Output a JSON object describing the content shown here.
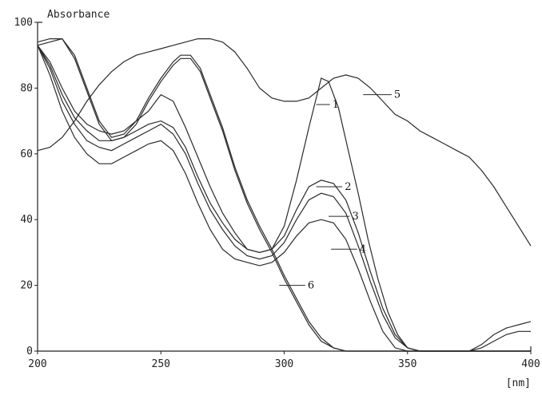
{
  "chart_data": {
    "type": "line",
    "ylabel": "Absorbance",
    "xlabel": "[nm]",
    "xlim": [
      200,
      400
    ],
    "ylim": [
      0,
      100
    ],
    "x_ticks": [
      200,
      250,
      300,
      350,
      400
    ],
    "y_ticks": [
      0,
      20,
      40,
      60,
      80,
      100
    ],
    "grid": false,
    "line_color": "#2a2a2a",
    "series": [
      {
        "name": "1",
        "label_at": [
          315,
          75
        ],
        "label_anchor": [
          313,
          75
        ],
        "points": [
          [
            200,
            93
          ],
          [
            205,
            88
          ],
          [
            210,
            80
          ],
          [
            215,
            73
          ],
          [
            220,
            69
          ],
          [
            225,
            67
          ],
          [
            230,
            66
          ],
          [
            235,
            67
          ],
          [
            240,
            70
          ],
          [
            245,
            73
          ],
          [
            250,
            78
          ],
          [
            255,
            76
          ],
          [
            260,
            68
          ],
          [
            265,
            59
          ],
          [
            270,
            50
          ],
          [
            275,
            42
          ],
          [
            280,
            36
          ],
          [
            285,
            31
          ],
          [
            290,
            30
          ],
          [
            295,
            31
          ],
          [
            300,
            38
          ],
          [
            305,
            52
          ],
          [
            310,
            68
          ],
          [
            315,
            83
          ],
          [
            318,
            82
          ],
          [
            322,
            74
          ],
          [
            326,
            61
          ],
          [
            330,
            48
          ],
          [
            334,
            34
          ],
          [
            338,
            22
          ],
          [
            342,
            12
          ],
          [
            346,
            5
          ],
          [
            350,
            1
          ],
          [
            355,
            0
          ],
          [
            400,
            0
          ]
        ]
      },
      {
        "name": "2",
        "label_at": [
          320,
          50
        ],
        "label_anchor": [
          313,
          50
        ],
        "points": [
          [
            200,
            93
          ],
          [
            205,
            87
          ],
          [
            210,
            78
          ],
          [
            215,
            71
          ],
          [
            220,
            67
          ],
          [
            225,
            64
          ],
          [
            230,
            64
          ],
          [
            235,
            65
          ],
          [
            240,
            67
          ],
          [
            245,
            69
          ],
          [
            250,
            70
          ],
          [
            255,
            68
          ],
          [
            260,
            62
          ],
          [
            265,
            53
          ],
          [
            270,
            45
          ],
          [
            275,
            39
          ],
          [
            280,
            34
          ],
          [
            285,
            31
          ],
          [
            290,
            30
          ],
          [
            295,
            31
          ],
          [
            300,
            35
          ],
          [
            305,
            43
          ],
          [
            310,
            50
          ],
          [
            315,
            52
          ],
          [
            320,
            51
          ],
          [
            325,
            46
          ],
          [
            330,
            36
          ],
          [
            335,
            24
          ],
          [
            340,
            13
          ],
          [
            345,
            5
          ],
          [
            350,
            1
          ],
          [
            355,
            0
          ],
          [
            400,
            0
          ]
        ]
      },
      {
        "name": "3",
        "label_at": [
          323,
          41
        ],
        "label_anchor": [
          318,
          41
        ],
        "points": [
          [
            200,
            93
          ],
          [
            205,
            86
          ],
          [
            210,
            76
          ],
          [
            215,
            69
          ],
          [
            220,
            64
          ],
          [
            225,
            62
          ],
          [
            230,
            61
          ],
          [
            235,
            63
          ],
          [
            240,
            65
          ],
          [
            245,
            67
          ],
          [
            250,
            69
          ],
          [
            255,
            66
          ],
          [
            260,
            60
          ],
          [
            265,
            51
          ],
          [
            270,
            43
          ],
          [
            275,
            37
          ],
          [
            280,
            32
          ],
          [
            285,
            29
          ],
          [
            290,
            28
          ],
          [
            295,
            29
          ],
          [
            300,
            33
          ],
          [
            305,
            40
          ],
          [
            310,
            46
          ],
          [
            315,
            48
          ],
          [
            320,
            47
          ],
          [
            325,
            42
          ],
          [
            330,
            32
          ],
          [
            335,
            21
          ],
          [
            340,
            11
          ],
          [
            345,
            4
          ],
          [
            350,
            1
          ],
          [
            355,
            0
          ],
          [
            400,
            0
          ]
        ]
      },
      {
        "name": "4",
        "label_at": [
          326,
          31
        ],
        "label_anchor": [
          319,
          31
        ],
        "points": [
          [
            200,
            93
          ],
          [
            205,
            84
          ],
          [
            210,
            73
          ],
          [
            215,
            65
          ],
          [
            220,
            60
          ],
          [
            225,
            57
          ],
          [
            230,
            57
          ],
          [
            235,
            59
          ],
          [
            240,
            61
          ],
          [
            245,
            63
          ],
          [
            250,
            64
          ],
          [
            255,
            61
          ],
          [
            260,
            54
          ],
          [
            265,
            45
          ],
          [
            270,
            37
          ],
          [
            275,
            31
          ],
          [
            280,
            28
          ],
          [
            285,
            27
          ],
          [
            290,
            26
          ],
          [
            295,
            27
          ],
          [
            300,
            30
          ],
          [
            305,
            35
          ],
          [
            310,
            39
          ],
          [
            315,
            40
          ],
          [
            320,
            39
          ],
          [
            325,
            34
          ],
          [
            330,
            25
          ],
          [
            335,
            15
          ],
          [
            340,
            6
          ],
          [
            345,
            1
          ],
          [
            350,
            0
          ],
          [
            375,
            0
          ],
          [
            380,
            1
          ],
          [
            385,
            3
          ],
          [
            390,
            5
          ],
          [
            395,
            6
          ],
          [
            400,
            6
          ]
        ]
      },
      {
        "name": "5",
        "label_at": [
          340,
          78
        ],
        "label_anchor": [
          332,
          78
        ],
        "points": [
          [
            200,
            61
          ],
          [
            205,
            62
          ],
          [
            210,
            65
          ],
          [
            215,
            70
          ],
          [
            220,
            76
          ],
          [
            225,
            81
          ],
          [
            230,
            85
          ],
          [
            235,
            88
          ],
          [
            240,
            90
          ],
          [
            245,
            91
          ],
          [
            250,
            92
          ],
          [
            255,
            93
          ],
          [
            260,
            94
          ],
          [
            265,
            95
          ],
          [
            270,
            95
          ],
          [
            275,
            94
          ],
          [
            280,
            91
          ],
          [
            285,
            86
          ],
          [
            290,
            80
          ],
          [
            295,
            77
          ],
          [
            300,
            76
          ],
          [
            305,
            76
          ],
          [
            310,
            77
          ],
          [
            315,
            80
          ],
          [
            320,
            83
          ],
          [
            325,
            84
          ],
          [
            330,
            83
          ],
          [
            335,
            80
          ],
          [
            340,
            76
          ],
          [
            345,
            72
          ],
          [
            350,
            70
          ],
          [
            355,
            67
          ],
          [
            360,
            65
          ],
          [
            365,
            63
          ],
          [
            370,
            61
          ],
          [
            375,
            59
          ],
          [
            380,
            55
          ],
          [
            385,
            50
          ],
          [
            390,
            44
          ],
          [
            395,
            38
          ],
          [
            400,
            32
          ]
        ]
      },
      {
        "name": "6",
        "label_at": [
          305,
          20
        ],
        "label_anchor": [
          298,
          20
        ],
        "points": [
          [
            200,
            94
          ],
          [
            205,
            95
          ],
          [
            210,
            95
          ],
          [
            215,
            90
          ],
          [
            220,
            80
          ],
          [
            225,
            70
          ],
          [
            230,
            65
          ],
          [
            235,
            66
          ],
          [
            240,
            70
          ],
          [
            245,
            77
          ],
          [
            250,
            83
          ],
          [
            255,
            88
          ],
          [
            258,
            90
          ],
          [
            262,
            90
          ],
          [
            266,
            86
          ],
          [
            270,
            78
          ],
          [
            275,
            68
          ],
          [
            280,
            56
          ],
          [
            285,
            46
          ],
          [
            290,
            38
          ],
          [
            295,
            31
          ],
          [
            300,
            23
          ],
          [
            305,
            16
          ],
          [
            310,
            9
          ],
          [
            315,
            4
          ],
          [
            320,
            1
          ],
          [
            325,
            0
          ],
          [
            400,
            0
          ]
        ]
      },
      {
        "name": "",
        "points": [
          [
            200,
            93
          ],
          [
            205,
            94
          ],
          [
            210,
            95
          ],
          [
            215,
            89
          ],
          [
            220,
            79
          ],
          [
            225,
            69
          ],
          [
            230,
            64
          ],
          [
            235,
            65
          ],
          [
            240,
            69
          ],
          [
            245,
            76
          ],
          [
            250,
            82
          ],
          [
            255,
            87
          ],
          [
            258,
            89
          ],
          [
            262,
            89
          ],
          [
            266,
            85
          ],
          [
            270,
            77
          ],
          [
            275,
            67
          ],
          [
            280,
            55
          ],
          [
            285,
            45
          ],
          [
            290,
            37
          ],
          [
            295,
            30
          ],
          [
            300,
            22
          ],
          [
            305,
            15
          ],
          [
            310,
            8
          ],
          [
            315,
            3
          ],
          [
            320,
            1
          ],
          [
            325,
            0
          ],
          [
            370,
            0
          ],
          [
            375,
            0
          ],
          [
            380,
            2
          ],
          [
            385,
            5
          ],
          [
            390,
            7
          ],
          [
            395,
            8
          ],
          [
            400,
            9
          ]
        ]
      }
    ]
  }
}
